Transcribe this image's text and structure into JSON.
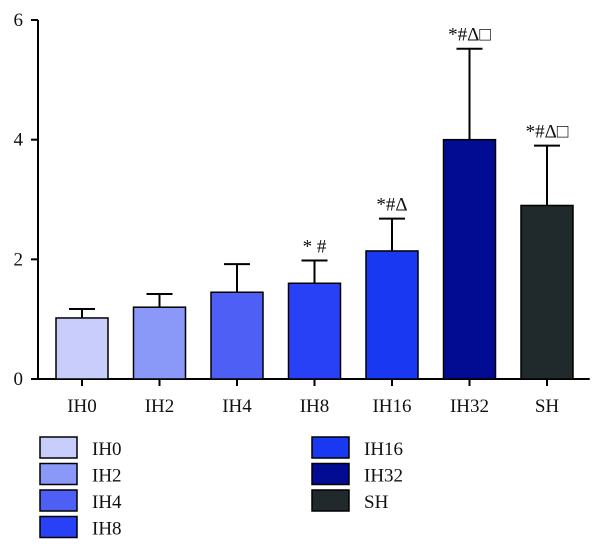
{
  "chart_data": {
    "type": "bar",
    "categories": [
      "IH0",
      "IH2",
      "IH4",
      "IH8",
      "IH16",
      "IH32",
      "SH"
    ],
    "values": [
      1.02,
      1.2,
      1.45,
      1.6,
      2.14,
      4.0,
      2.9
    ],
    "error_upper": [
      1.17,
      1.42,
      1.92,
      1.98,
      2.68,
      5.52,
      3.9
    ],
    "annotations": [
      "",
      "",
      "",
      "* #",
      "*#Δ",
      "*#Δ□",
      "*#Δ□"
    ],
    "colors": [
      "#c8cdfb",
      "#8a98f8",
      "#4d5ff4",
      "#2941f6",
      "#1938f2",
      "#010c92",
      "#202a2c"
    ],
    "ylim": [
      0,
      6
    ],
    "yticks": [
      0,
      2,
      4,
      6
    ],
    "xlabel": "",
    "ylabel": "",
    "title": "",
    "grid": false,
    "legend": {
      "placement": "bottom",
      "columns": 2,
      "entries": [
        "IH0",
        "IH2",
        "IH4",
        "IH8",
        "IH16",
        "IH32",
        "SH"
      ]
    }
  }
}
